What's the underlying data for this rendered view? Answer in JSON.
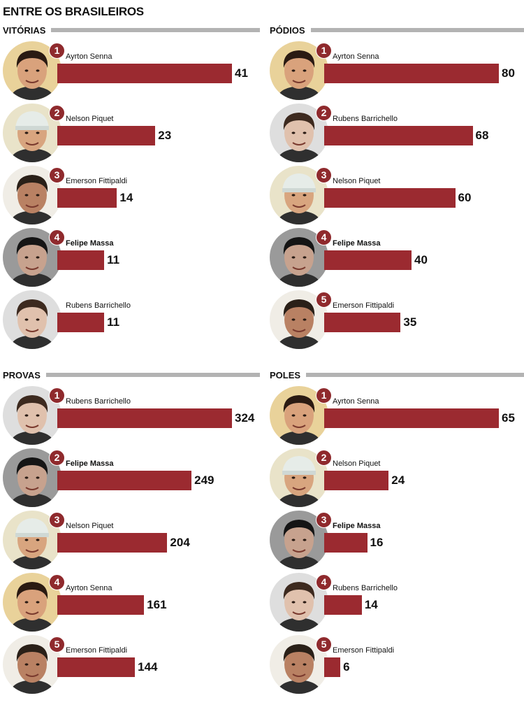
{
  "title": "ENTRE OS BRASILEIROS",
  "colors": {
    "bar": "#9b2a30",
    "badge": "#8f2a2d",
    "rule": "#b3b3b3"
  },
  "chart_data": [
    {
      "type": "bar",
      "title": "VITÓRIAS",
      "categories": [
        "Ayrton Senna",
        "Nelson Piquet",
        "Emerson Fittipaldi",
        "Felipe Massa",
        "Rubens Barrichello"
      ],
      "ranks": [
        "1",
        "2",
        "3",
        "4",
        ""
      ],
      "values": [
        41,
        23,
        14,
        11,
        11
      ],
      "highlight": [
        "Felipe Massa"
      ],
      "grid": false
    },
    {
      "type": "bar",
      "title": "PÓDIOS",
      "categories": [
        "Ayrton Senna",
        "Rubens Barrichello",
        "Nelson Piquet",
        "Felipe Massa",
        "Emerson Fittipaldi"
      ],
      "ranks": [
        "1",
        "2",
        "3",
        "4",
        "5"
      ],
      "values": [
        80,
        68,
        60,
        40,
        35
      ],
      "highlight": [
        "Felipe Massa"
      ],
      "grid": false
    },
    {
      "type": "bar",
      "title": "PROVAS",
      "categories": [
        "Rubens Barrichello",
        "Felipe Massa",
        "Nelson Piquet",
        "Ayrton Senna",
        "Emerson Fittipaldi"
      ],
      "ranks": [
        "1",
        "2",
        "3",
        "4",
        "5"
      ],
      "values": [
        324,
        249,
        204,
        161,
        144
      ],
      "highlight": [
        "Felipe Massa"
      ],
      "grid": false
    },
    {
      "type": "bar",
      "title": "POLES",
      "categories": [
        "Ayrton Senna",
        "Nelson Piquet",
        "Felipe Massa",
        "Rubens Barrichello",
        "Emerson Fittipaldi"
      ],
      "ranks": [
        "1",
        "2",
        "3",
        "4",
        "5"
      ],
      "values": [
        65,
        24,
        16,
        14,
        6
      ],
      "highlight": [
        "Felipe Massa"
      ],
      "grid": false
    }
  ]
}
